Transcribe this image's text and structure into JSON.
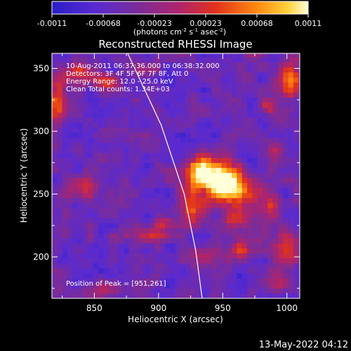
{
  "chart_data": {
    "type": "heatmap",
    "title": "Reconstructed RHESSI Image",
    "xlabel": "Heliocentric X (arcsec)",
    "ylabel": "Heliocentric Y (arcsec)",
    "xlim": [
      817,
      1010
    ],
    "ylim": [
      167,
      362
    ],
    "x_ticks": [
      850,
      900,
      950,
      1000
    ],
    "y_ticks": [
      200,
      250,
      300,
      350
    ],
    "colorbar": {
      "min": -0.0011,
      "max": 0.0011,
      "ticks": [
        "-0.0011",
        "-0.00068",
        "-0.00023",
        "0.00023",
        "0.00068",
        "0.0011"
      ],
      "unit_label": "(photons cm",
      "unit_sup1": "-2",
      "unit_mid": " s",
      "unit_sup2": "-1",
      "unit_mid2": " asec",
      "unit_sup3": "-2",
      "unit_end": ")"
    },
    "info_lines": [
      "10-Aug-2011 06:37:36.000 to 06:38:32.000",
      "Detectors: 3F 4F 5F 6F 7F 8F, Att 0",
      "Energy Range: 12.0 - 25.0 keV",
      "Clean     Total counts: 1.34E+03"
    ],
    "peak_label": "Position of Peak = [951,261]",
    "peak": {
      "x": 951,
      "y": 261,
      "value": 0.0011
    },
    "limb": [
      [
        876,
        362
      ],
      [
        902,
        305
      ],
      [
        920,
        250
      ],
      [
        929,
        205
      ],
      [
        934,
        167
      ]
    ],
    "blobs": [
      {
        "x": 951,
        "y": 261,
        "sx": 9,
        "sy": 9,
        "a": 1.0
      },
      {
        "x": 938,
        "y": 264,
        "sx": 13,
        "sy": 12,
        "a": 0.55
      },
      {
        "x": 962,
        "y": 248,
        "sx": 12,
        "sy": 10,
        "a": 0.5
      },
      {
        "x": 925,
        "y": 238,
        "sx": 8,
        "sy": 9,
        "a": 0.55
      },
      {
        "x": 930,
        "y": 270,
        "sx": 6,
        "sy": 8,
        "a": 0.45
      },
      {
        "x": 960,
        "y": 230,
        "sx": 6,
        "sy": 6,
        "a": 0.5
      },
      {
        "x": 985,
        "y": 240,
        "sx": 6,
        "sy": 8,
        "a": 0.45
      },
      {
        "x": 1000,
        "y": 205,
        "sx": 7,
        "sy": 10,
        "a": 0.55
      },
      {
        "x": 990,
        "y": 285,
        "sx": 5,
        "sy": 6,
        "a": 0.4
      },
      {
        "x": 1003,
        "y": 340,
        "sx": 6,
        "sy": 11,
        "a": 0.6
      },
      {
        "x": 985,
        "y": 320,
        "sx": 4,
        "sy": 4,
        "a": 0.4
      },
      {
        "x": 935,
        "y": 200,
        "sx": 10,
        "sy": 5,
        "a": 0.45
      },
      {
        "x": 965,
        "y": 205,
        "sx": 8,
        "sy": 6,
        "a": 0.45
      },
      {
        "x": 890,
        "y": 217,
        "sx": 11,
        "sy": 4,
        "a": 0.5
      },
      {
        "x": 905,
        "y": 227,
        "sx": 6,
        "sy": 4,
        "a": 0.4
      },
      {
        "x": 840,
        "y": 255,
        "sx": 8,
        "sy": 7,
        "a": 0.45
      },
      {
        "x": 822,
        "y": 325,
        "sx": 5,
        "sy": 14,
        "a": 0.55
      },
      {
        "x": 838,
        "y": 345,
        "sx": 11,
        "sy": 6,
        "a": 0.5
      },
      {
        "x": 862,
        "y": 338,
        "sx": 7,
        "sy": 5,
        "a": 0.45
      },
      {
        "x": 890,
        "y": 350,
        "sx": 6,
        "sy": 4,
        "a": 0.35
      },
      {
        "x": 860,
        "y": 175,
        "sx": 10,
        "sy": 4,
        "a": 0.35
      },
      {
        "x": 995,
        "y": 178,
        "sx": 8,
        "sy": 5,
        "a": 0.45
      },
      {
        "x": 975,
        "y": 365,
        "sx": 6,
        "sy": 4,
        "a": 0.35
      }
    ],
    "background_level": -0.55,
    "noise_amplitude": 0.35
  },
  "footer": {
    "date": "13-May-2022 04:12"
  }
}
